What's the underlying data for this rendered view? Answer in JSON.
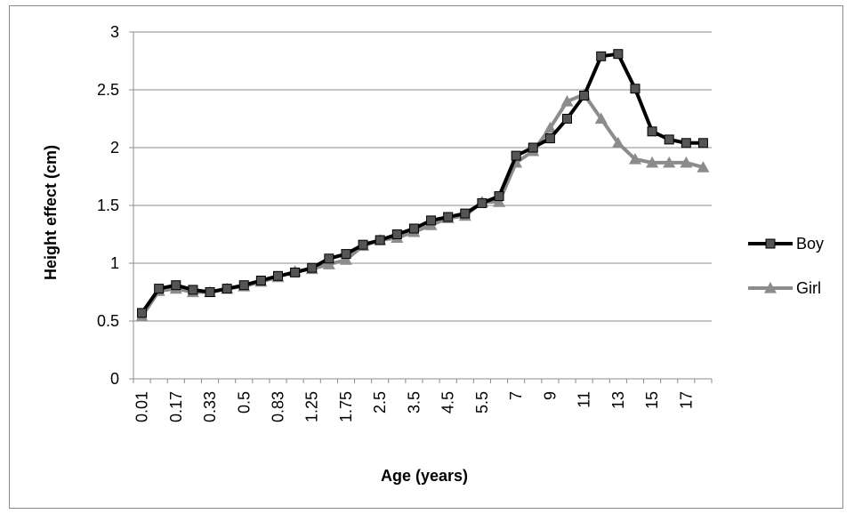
{
  "chart_data": {
    "type": "line",
    "xlabel": "Age (years)",
    "ylabel": "Height effect (cm)",
    "ylim": [
      0,
      3
    ],
    "yticks": [
      "0",
      "0.5",
      "1",
      "1.5",
      "2",
      "2.5",
      "3"
    ],
    "grid": "horizontal",
    "legend_position": "right",
    "x": [
      "0.01",
      "0.08",
      "0.17",
      "0.25",
      "0.33",
      "0.42",
      "0.5",
      "0.67",
      "0.83",
      "1",
      "1.25",
      "1.5",
      "1.75",
      "2",
      "2.5",
      "3",
      "3.5",
      "4",
      "4.5",
      "5",
      "5.5",
      "6",
      "7",
      "8",
      "9",
      "10",
      "11",
      "12",
      "13",
      "14",
      "15",
      "16",
      "17",
      "18"
    ],
    "x_tick_labels_shown": [
      "0.01",
      "0.17",
      "0.33",
      "0.5",
      "0.83",
      "1.25",
      "1.75",
      "2.5",
      "3.5",
      "4.5",
      "5.5",
      "7",
      "9",
      "11",
      "13",
      "15",
      "17"
    ],
    "series": [
      {
        "name": "Boy",
        "color": "#000000",
        "marker": "square",
        "values": [
          0.57,
          0.78,
          0.81,
          0.77,
          0.75,
          0.78,
          0.81,
          0.85,
          0.89,
          0.92,
          0.96,
          1.04,
          1.08,
          1.16,
          1.2,
          1.25,
          1.3,
          1.37,
          1.4,
          1.43,
          1.52,
          1.58,
          1.93,
          2.0,
          2.08,
          2.25,
          2.45,
          2.79,
          2.81,
          2.51,
          2.14,
          2.07,
          2.04,
          2.04
        ]
      },
      {
        "name": "Girl",
        "color": "#8c8c8c",
        "marker": "triangle",
        "values": [
          0.54,
          0.76,
          0.78,
          0.75,
          0.75,
          0.78,
          0.8,
          0.84,
          0.88,
          0.93,
          0.95,
          0.99,
          1.03,
          1.15,
          1.2,
          1.22,
          1.27,
          1.33,
          1.39,
          1.41,
          1.53,
          1.53,
          1.87,
          1.97,
          2.17,
          2.4,
          2.46,
          2.25,
          2.04,
          1.9,
          1.87,
          1.87,
          1.87,
          1.83
        ]
      }
    ]
  }
}
